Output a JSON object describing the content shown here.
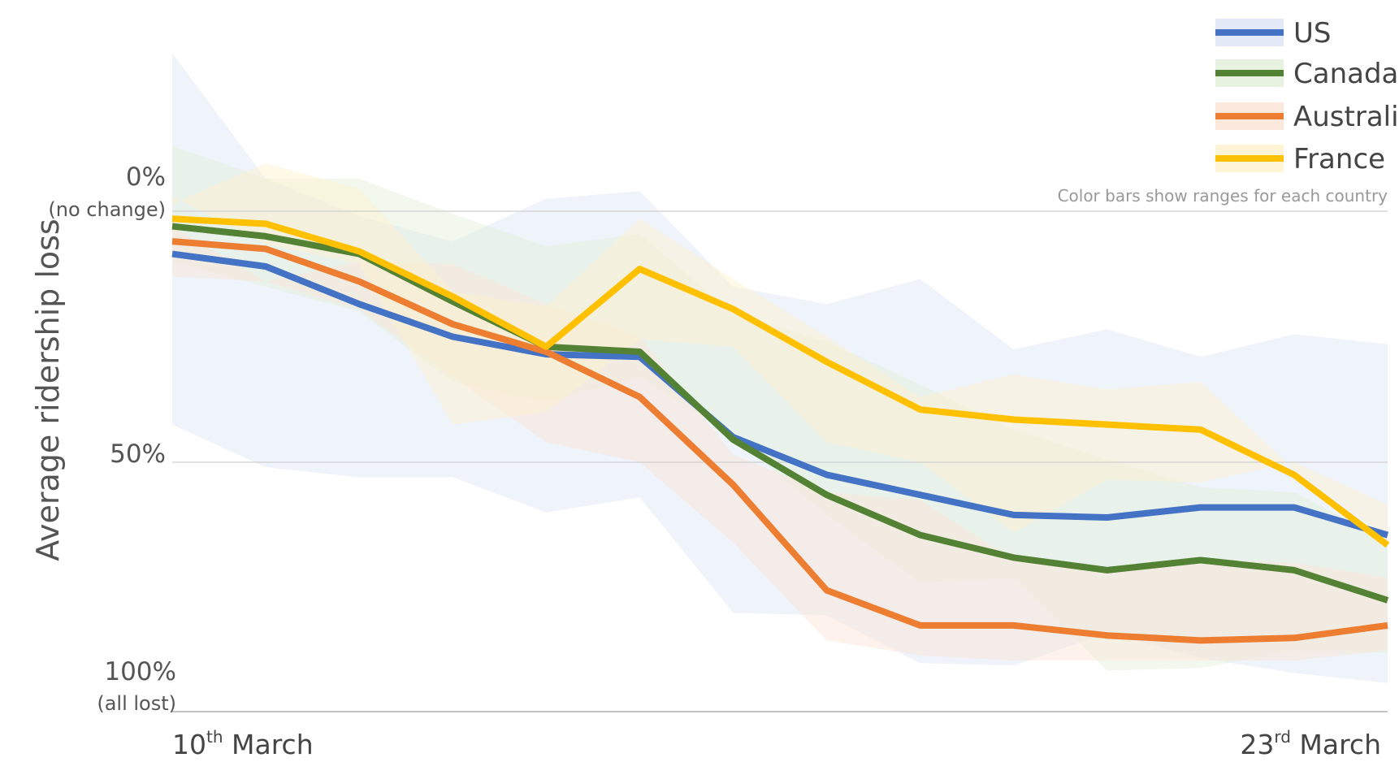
{
  "chart_data": {
    "type": "line",
    "ylabel": "Average ridership loss",
    "y_ticks": [
      {
        "value": 0,
        "label": "0%",
        "sublabel": "(no change)"
      },
      {
        "value": 50,
        "label": "50%",
        "sublabel": ""
      },
      {
        "value": 100,
        "label": "100%",
        "sublabel": "(all lost)"
      }
    ],
    "ylim": [
      -32,
      100
    ],
    "ylim_note": "inverted: 0% at top, 100% at bottom",
    "x_labels": {
      "start": {
        "main": "10",
        "sup": "th",
        "rest": " March"
      },
      "end": {
        "main": "23",
        "sup": "rd",
        "rest": " March"
      }
    },
    "x_count": 14,
    "note": "Color bars show ranges for each country",
    "legend_position": "top-right",
    "grid": true,
    "series": [
      {
        "name": "US",
        "color": "#4472C4",
        "band_color": "#DCE4F4",
        "values": [
          8.5,
          11,
          18.5,
          25,
          28.5,
          29,
          45,
          52.5,
          56.5,
          60.5,
          61,
          59,
          59,
          64.5
        ],
        "range_low": [
          -31.5,
          -6.5,
          1,
          6,
          -2.5,
          -4,
          15,
          18.5,
          13.5,
          27.5,
          23.5,
          29,
          24.5,
          26.5
        ],
        "range_high": [
          42.5,
          51,
          53,
          53,
          60,
          57,
          80,
          80.5,
          90,
          90.5,
          84,
          89,
          92,
          94
        ]
      },
      {
        "name": "Canada",
        "color": "#548235",
        "band_color": "#E2EFD9",
        "values": [
          3,
          5,
          8.5,
          18,
          27,
          28,
          45.5,
          56.5,
          64.5,
          69,
          71.5,
          69.5,
          71.5,
          77.5
        ],
        "range_low": [
          -13,
          -6.5,
          -6.5,
          0.5,
          7,
          4.5,
          20.5,
          26,
          34.5,
          43.5,
          49.5,
          55,
          56,
          65.5
        ],
        "range_high": [
          10,
          15,
          20,
          34,
          38,
          33,
          45,
          60.5,
          74,
          73,
          91.5,
          91,
          87.5,
          88
        ]
      },
      {
        "name": "Australia",
        "color": "#ED7D31",
        "band_color": "#FBE4D5",
        "values": [
          6,
          7.5,
          14,
          22.5,
          28,
          37,
          54.5,
          75.5,
          82.5,
          82.5,
          84.5,
          85.5,
          85,
          82.5
        ],
        "range_low": [
          3,
          14,
          10,
          10.5,
          18.5,
          25,
          48.5,
          56,
          57.5,
          69.5,
          71.5,
          69.5,
          70,
          73
        ],
        "range_high": [
          13,
          14,
          19.5,
          33,
          46,
          50,
          66,
          85.5,
          88.5,
          89.5,
          89.5,
          89.5,
          89.5,
          87.5
        ]
      },
      {
        "name": "France",
        "color": "#FFC000",
        "band_color": "#FFF2CC",
        "values": [
          1.5,
          2.5,
          8,
          17,
          27,
          11.5,
          19.5,
          30,
          39.5,
          41.5,
          42.5,
          43.5,
          52.5,
          66.5
        ],
        "range_low": [
          -1.5,
          -9.5,
          -4.5,
          16,
          19,
          1.5,
          13.5,
          25,
          37,
          32.5,
          35.5,
          34,
          51.5,
          65
        ],
        "range_high": [
          -3,
          6.5,
          10.5,
          42.5,
          40,
          25.5,
          27,
          46,
          50,
          64,
          53.5,
          54,
          50,
          58.5
        ]
      }
    ]
  }
}
